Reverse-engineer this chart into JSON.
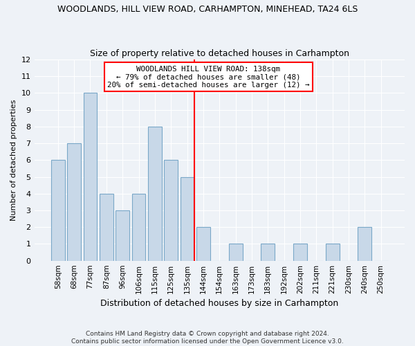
{
  "title": "WOODLANDS, HILL VIEW ROAD, CARHAMPTON, MINEHEAD, TA24 6LS",
  "subtitle": "Size of property relative to detached houses in Carhampton",
  "xlabel": "Distribution of detached houses by size in Carhampton",
  "ylabel": "Number of detached properties",
  "footer_line1": "Contains HM Land Registry data © Crown copyright and database right 2024.",
  "footer_line2": "Contains public sector information licensed under the Open Government Licence v3.0.",
  "categories": [
    "58sqm",
    "68sqm",
    "77sqm",
    "87sqm",
    "96sqm",
    "106sqm",
    "115sqm",
    "125sqm",
    "135sqm",
    "144sqm",
    "154sqm",
    "163sqm",
    "173sqm",
    "183sqm",
    "192sqm",
    "202sqm",
    "211sqm",
    "221sqm",
    "230sqm",
    "240sqm",
    "250sqm"
  ],
  "values": [
    6,
    7,
    10,
    4,
    3,
    4,
    8,
    6,
    5,
    2,
    0,
    1,
    0,
    1,
    0,
    1,
    0,
    1,
    0,
    2,
    0
  ],
  "bar_color": "#c8d8e8",
  "bar_edge_color": "#7aa8c8",
  "annotation_text_line1": "WOODLANDS HILL VIEW ROAD: 138sqm",
  "annotation_text_line2": "← 79% of detached houses are smaller (48)",
  "annotation_text_line3": "20% of semi-detached houses are larger (12) →",
  "annotation_box_color": "white",
  "annotation_box_edge_color": "red",
  "vline_color": "red",
  "ylim": [
    0,
    12
  ],
  "yticks": [
    0,
    1,
    2,
    3,
    4,
    5,
    6,
    7,
    8,
    9,
    10,
    11,
    12
  ],
  "background_color": "#eef2f7",
  "grid_color": "white",
  "title_fontsize": 9,
  "subtitle_fontsize": 9
}
